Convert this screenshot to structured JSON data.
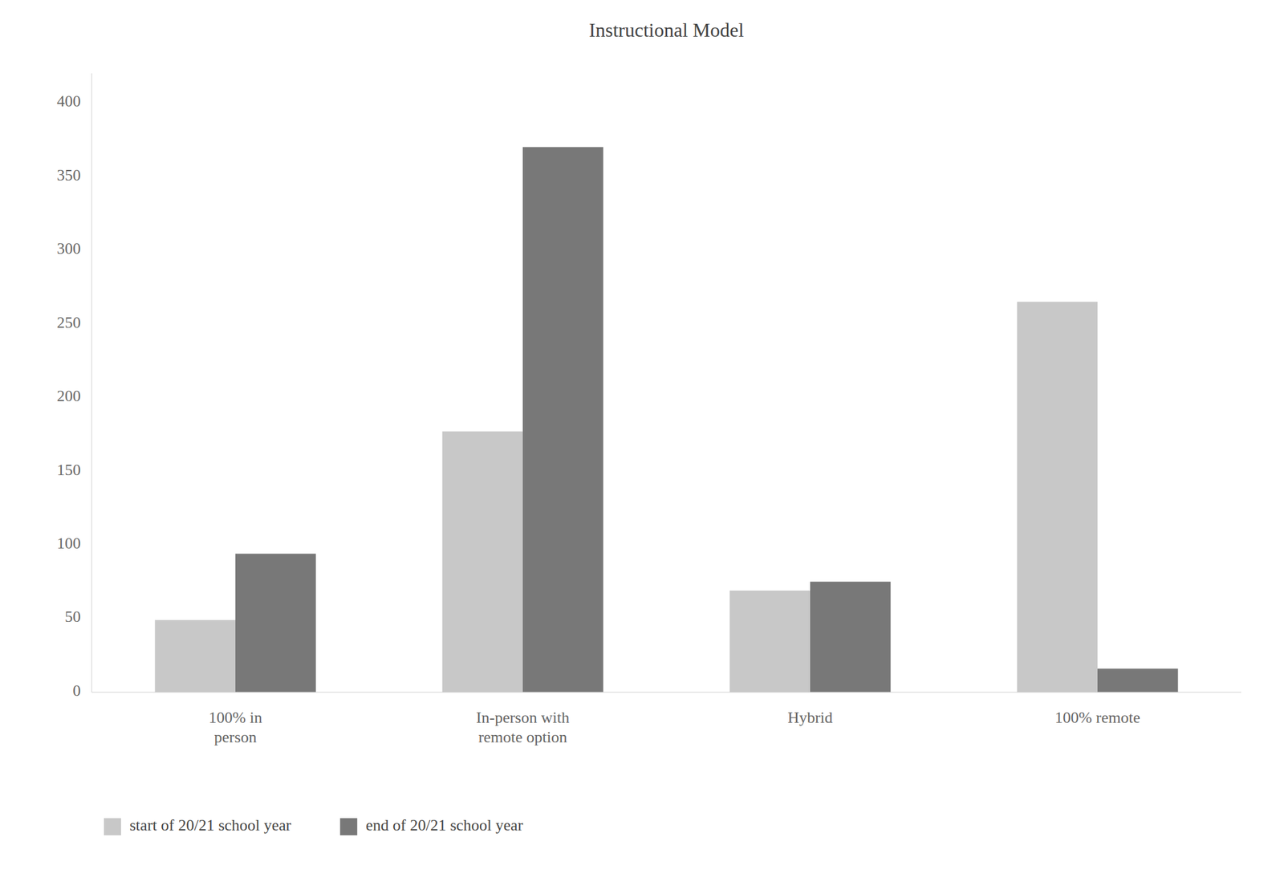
{
  "chart_data": {
    "type": "bar",
    "title": "Instructional Model",
    "categories": [
      "100% in\nperson",
      "In-person with\nremote option",
      "Hybrid",
      "100% remote"
    ],
    "series": [
      {
        "name": "start of 20/21 school year",
        "color": "#c8c8c8",
        "values": [
          49,
          177,
          69,
          265
        ]
      },
      {
        "name": "end of 20/21 school year",
        "color": "#787878",
        "values": [
          94,
          370,
          75,
          16
        ]
      }
    ],
    "ylim": [
      0,
      420
    ],
    "yticks": [
      0,
      50,
      100,
      150,
      200,
      250,
      300,
      350,
      400
    ],
    "grid": false,
    "legend": "bottom"
  }
}
